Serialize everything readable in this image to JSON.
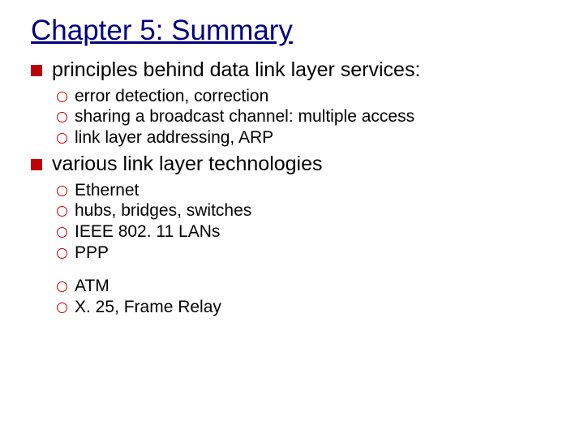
{
  "slide": {
    "title": "Chapter 5: Summary",
    "title_color": "#000080",
    "title_fontsize": 35,
    "body_fontsize_l1": 25,
    "body_fontsize_l2": 21,
    "bullet_l1_color": "#c00000",
    "bullet_l2_color": "#c00000",
    "background_color": "#ffffff",
    "items": [
      {
        "text": "principles behind data link layer services:",
        "sub": [
          "error detection, correction",
          "sharing a broadcast channel: multiple access",
          "link layer addressing, ARP"
        ]
      },
      {
        "text": "various link layer technologies",
        "sub": [
          "Ethernet",
          "hubs, bridges, switches",
          "IEEE 802. 11 LANs",
          "PPP"
        ],
        "sub2": [
          "ATM",
          "X. 25, Frame Relay"
        ]
      }
    ]
  }
}
